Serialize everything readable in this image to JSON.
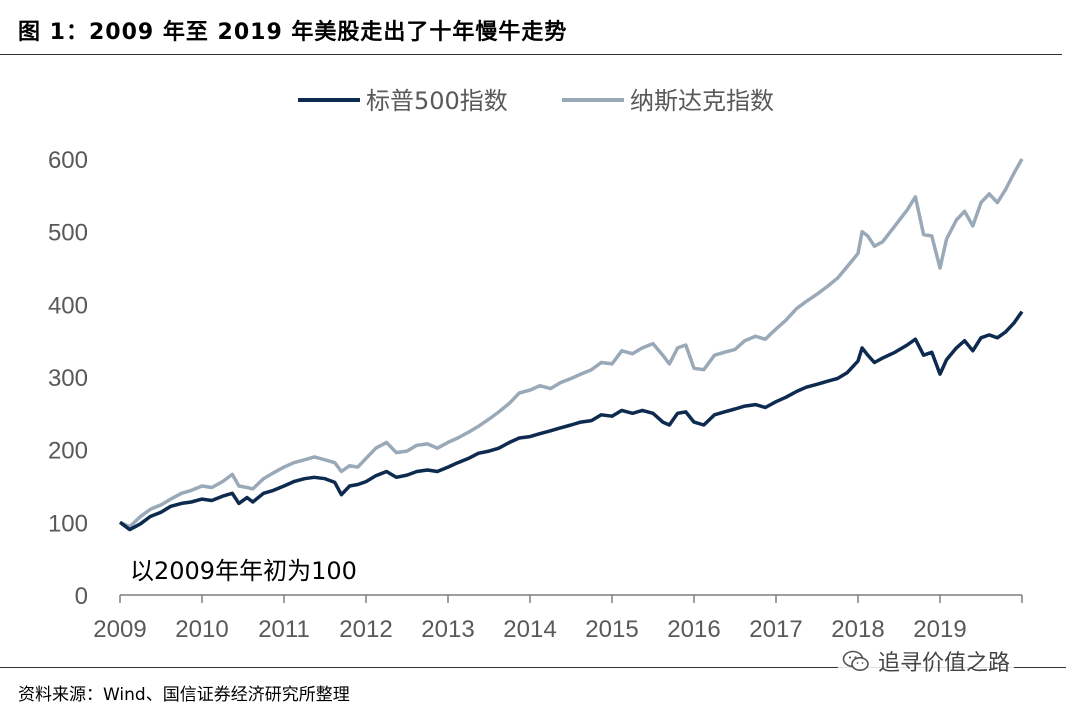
{
  "figure_title": "图 1：2009 年至 2019 年美股走出了十年慢牛走势",
  "source_note": "资料来源：Wind、国信证券经济研究所整理",
  "watermark": "追寻价值之路",
  "watermark_icon": "wechat-icon",
  "chart_data": {
    "type": "line",
    "title": "",
    "annotation": "以2009年年初为100",
    "xlabel": "",
    "ylabel": "",
    "ylim": [
      0,
      600
    ],
    "yticks": [
      "0",
      "100",
      "200",
      "300",
      "400",
      "500",
      "600"
    ],
    "xlim": [
      2009.0,
      2020.0
    ],
    "xticks": [
      "2009",
      "2010",
      "2011",
      "2012",
      "2013",
      "2014",
      "2015",
      "2016",
      "2017",
      "2018",
      "2019"
    ],
    "grid": false,
    "legend_position": "top-center",
    "series": [
      {
        "name": "标普500指数",
        "color": "#0d2a4f",
        "points": [
          [
            2009.0,
            100
          ],
          [
            2009.12,
            90
          ],
          [
            2009.25,
            98
          ],
          [
            2009.37,
            108
          ],
          [
            2009.5,
            114
          ],
          [
            2009.62,
            122
          ],
          [
            2009.75,
            126
          ],
          [
            2009.87,
            128
          ],
          [
            2010.0,
            132
          ],
          [
            2010.12,
            130
          ],
          [
            2010.25,
            136
          ],
          [
            2010.37,
            140
          ],
          [
            2010.45,
            126
          ],
          [
            2010.55,
            134
          ],
          [
            2010.62,
            128
          ],
          [
            2010.75,
            140
          ],
          [
            2010.87,
            144
          ],
          [
            2011.0,
            150
          ],
          [
            2011.12,
            156
          ],
          [
            2011.25,
            160
          ],
          [
            2011.37,
            162
          ],
          [
            2011.5,
            160
          ],
          [
            2011.62,
            155
          ],
          [
            2011.7,
            138
          ],
          [
            2011.8,
            150
          ],
          [
            2011.9,
            152
          ],
          [
            2012.0,
            156
          ],
          [
            2012.12,
            164
          ],
          [
            2012.25,
            170
          ],
          [
            2012.37,
            162
          ],
          [
            2012.5,
            165
          ],
          [
            2012.62,
            170
          ],
          [
            2012.75,
            172
          ],
          [
            2012.87,
            170
          ],
          [
            2013.0,
            176
          ],
          [
            2013.12,
            182
          ],
          [
            2013.25,
            188
          ],
          [
            2013.37,
            195
          ],
          [
            2013.5,
            198
          ],
          [
            2013.62,
            202
          ],
          [
            2013.75,
            210
          ],
          [
            2013.87,
            216
          ],
          [
            2014.0,
            218
          ],
          [
            2014.12,
            222
          ],
          [
            2014.25,
            226
          ],
          [
            2014.37,
            230
          ],
          [
            2014.5,
            234
          ],
          [
            2014.62,
            238
          ],
          [
            2014.75,
            240
          ],
          [
            2014.87,
            248
          ],
          [
            2015.0,
            246
          ],
          [
            2015.12,
            254
          ],
          [
            2015.25,
            250
          ],
          [
            2015.37,
            254
          ],
          [
            2015.5,
            250
          ],
          [
            2015.62,
            238
          ],
          [
            2015.7,
            234
          ],
          [
            2015.8,
            250
          ],
          [
            2015.9,
            252
          ],
          [
            2016.0,
            238
          ],
          [
            2016.12,
            234
          ],
          [
            2016.25,
            248
          ],
          [
            2016.37,
            252
          ],
          [
            2016.5,
            256
          ],
          [
            2016.62,
            260
          ],
          [
            2016.75,
            262
          ],
          [
            2016.87,
            258
          ],
          [
            2017.0,
            266
          ],
          [
            2017.12,
            272
          ],
          [
            2017.25,
            280
          ],
          [
            2017.37,
            286
          ],
          [
            2017.5,
            290
          ],
          [
            2017.62,
            294
          ],
          [
            2017.75,
            298
          ],
          [
            2017.87,
            306
          ],
          [
            2018.0,
            322
          ],
          [
            2018.05,
            340
          ],
          [
            2018.12,
            330
          ],
          [
            2018.2,
            320
          ],
          [
            2018.3,
            326
          ],
          [
            2018.45,
            334
          ],
          [
            2018.6,
            344
          ],
          [
            2018.7,
            352
          ],
          [
            2018.8,
            330
          ],
          [
            2018.9,
            334
          ],
          [
            2019.0,
            304
          ],
          [
            2019.08,
            324
          ],
          [
            2019.2,
            340
          ],
          [
            2019.3,
            350
          ],
          [
            2019.4,
            336
          ],
          [
            2019.5,
            354
          ],
          [
            2019.6,
            358
          ],
          [
            2019.7,
            354
          ],
          [
            2019.8,
            362
          ],
          [
            2019.9,
            374
          ],
          [
            2020.0,
            390
          ]
        ]
      },
      {
        "name": "纳斯达克指数",
        "color": "#9aa9b8",
        "points": [
          [
            2009.0,
            100
          ],
          [
            2009.12,
            94
          ],
          [
            2009.25,
            108
          ],
          [
            2009.37,
            118
          ],
          [
            2009.5,
            124
          ],
          [
            2009.62,
            132
          ],
          [
            2009.75,
            140
          ],
          [
            2009.87,
            144
          ],
          [
            2010.0,
            150
          ],
          [
            2010.12,
            148
          ],
          [
            2010.25,
            156
          ],
          [
            2010.37,
            166
          ],
          [
            2010.45,
            150
          ],
          [
            2010.55,
            148
          ],
          [
            2010.62,
            146
          ],
          [
            2010.75,
            160
          ],
          [
            2010.87,
            168
          ],
          [
            2011.0,
            176
          ],
          [
            2011.12,
            182
          ],
          [
            2011.25,
            186
          ],
          [
            2011.37,
            190
          ],
          [
            2011.5,
            186
          ],
          [
            2011.62,
            182
          ],
          [
            2011.7,
            170
          ],
          [
            2011.8,
            178
          ],
          [
            2011.9,
            176
          ],
          [
            2012.0,
            188
          ],
          [
            2012.12,
            202
          ],
          [
            2012.25,
            210
          ],
          [
            2012.37,
            196
          ],
          [
            2012.5,
            198
          ],
          [
            2012.62,
            206
          ],
          [
            2012.75,
            208
          ],
          [
            2012.87,
            202
          ],
          [
            2013.0,
            210
          ],
          [
            2013.12,
            216
          ],
          [
            2013.25,
            224
          ],
          [
            2013.37,
            232
          ],
          [
            2013.5,
            242
          ],
          [
            2013.62,
            252
          ],
          [
            2013.75,
            264
          ],
          [
            2013.87,
            278
          ],
          [
            2014.0,
            282
          ],
          [
            2014.12,
            288
          ],
          [
            2014.25,
            284
          ],
          [
            2014.37,
            292
          ],
          [
            2014.5,
            298
          ],
          [
            2014.62,
            304
          ],
          [
            2014.75,
            310
          ],
          [
            2014.87,
            320
          ],
          [
            2015.0,
            318
          ],
          [
            2015.12,
            336
          ],
          [
            2015.25,
            332
          ],
          [
            2015.37,
            340
          ],
          [
            2015.5,
            346
          ],
          [
            2015.62,
            330
          ],
          [
            2015.7,
            318
          ],
          [
            2015.8,
            340
          ],
          [
            2015.9,
            344
          ],
          [
            2016.0,
            312
          ],
          [
            2016.12,
            310
          ],
          [
            2016.25,
            330
          ],
          [
            2016.37,
            334
          ],
          [
            2016.5,
            338
          ],
          [
            2016.62,
            350
          ],
          [
            2016.75,
            356
          ],
          [
            2016.87,
            352
          ],
          [
            2017.0,
            366
          ],
          [
            2017.12,
            378
          ],
          [
            2017.25,
            394
          ],
          [
            2017.37,
            404
          ],
          [
            2017.5,
            414
          ],
          [
            2017.62,
            424
          ],
          [
            2017.75,
            436
          ],
          [
            2017.87,
            452
          ],
          [
            2018.0,
            470
          ],
          [
            2018.05,
            500
          ],
          [
            2018.12,
            494
          ],
          [
            2018.2,
            480
          ],
          [
            2018.3,
            486
          ],
          [
            2018.45,
            508
          ],
          [
            2018.6,
            530
          ],
          [
            2018.7,
            548
          ],
          [
            2018.8,
            496
          ],
          [
            2018.9,
            494
          ],
          [
            2019.0,
            450
          ],
          [
            2019.08,
            490
          ],
          [
            2019.2,
            516
          ],
          [
            2019.3,
            528
          ],
          [
            2019.4,
            508
          ],
          [
            2019.5,
            540
          ],
          [
            2019.6,
            552
          ],
          [
            2019.7,
            540
          ],
          [
            2019.8,
            558
          ],
          [
            2019.9,
            580
          ],
          [
            2020.0,
            600
          ]
        ]
      }
    ]
  }
}
